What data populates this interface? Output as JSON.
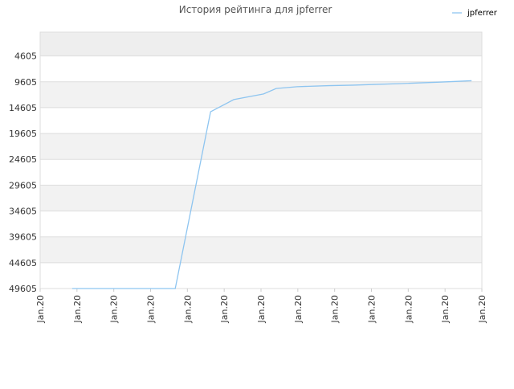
{
  "chart_data": {
    "type": "line",
    "title": "История рейтинга для jpferrer",
    "xlim": [
      0,
      12
    ],
    "xticks": [
      {
        "value": 0,
        "label": "Jan.20"
      },
      {
        "value": 1,
        "label": "Jan.20"
      },
      {
        "value": 2,
        "label": "Jan.20"
      },
      {
        "value": 3,
        "label": "Jan.20"
      },
      {
        "value": 4,
        "label": "Jan.20"
      },
      {
        "value": 5,
        "label": "Jan.20"
      },
      {
        "value": 6,
        "label": "Jan.20"
      },
      {
        "value": 7,
        "label": "Jan.20"
      },
      {
        "value": 8,
        "label": "Jan.20"
      },
      {
        "value": 9,
        "label": "Jan.20"
      },
      {
        "value": 10,
        "label": "Jan.20"
      },
      {
        "value": 11,
        "label": "Jan.20"
      },
      {
        "value": 12,
        "label": "Jan.20"
      }
    ],
    "ylim": [
      49605,
      0
    ],
    "yticks": [
      4605,
      9605,
      14605,
      19605,
      24605,
      29605,
      34605,
      39605,
      44605,
      49605
    ],
    "grid": true,
    "legend": "top-right",
    "series": [
      {
        "name": "jpferrer",
        "color": "#8ec5f0",
        "x": [
          0.87,
          3.67,
          4.63,
          5.26,
          6.07,
          6.41,
          6.98,
          7.85,
          8.51,
          9.16,
          9.82,
          10.91,
          11.72
        ],
        "values": [
          49605,
          49605,
          15400,
          13050,
          11950,
          10900,
          10550,
          10350,
          10250,
          10100,
          9950,
          9650,
          9400
        ]
      }
    ]
  }
}
